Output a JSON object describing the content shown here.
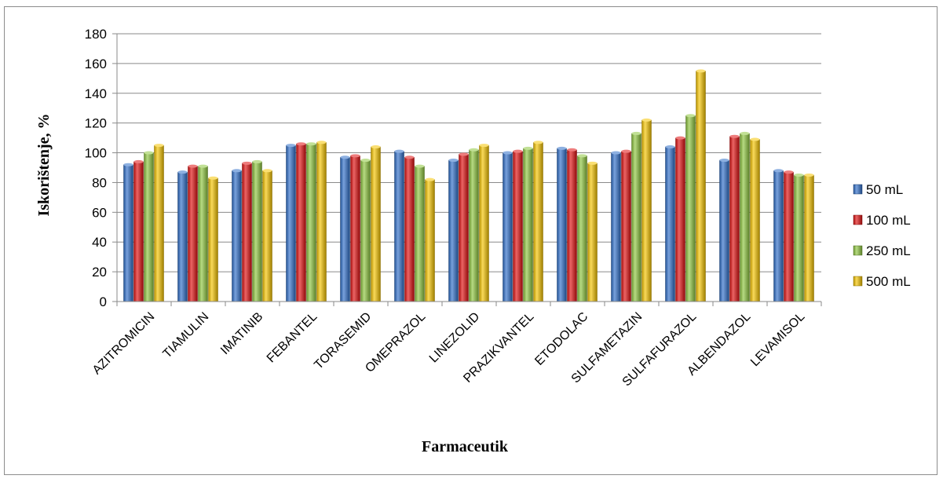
{
  "chart_data": {
    "type": "bar",
    "title": "",
    "xlabel": "Farmaceutik",
    "ylabel": "Iskorištenje, %",
    "ylim": [
      0,
      180
    ],
    "yticks": [
      0,
      20,
      40,
      60,
      80,
      100,
      120,
      140,
      160,
      180
    ],
    "grid": true,
    "legend_position": "right",
    "categories": [
      "AZITROMICIN",
      "TIAMULIN",
      "IMATINIB",
      "FEBANTEL",
      "TORASEMID",
      "OMEPRAZOL",
      "LINEZOLID",
      "PRAZIKVANTEL",
      "ETODOLAC",
      "SULFAMETAZIN",
      "SULFAFURAZOL",
      "ALBENDAZOL",
      "LEVAMISOL"
    ],
    "series": [
      {
        "name": "50 mL",
        "color": "#2f6fc9",
        "values": [
          92,
          87,
          88,
          105,
          97,
          101,
          95,
          100,
          103,
          100,
          104,
          95,
          88
        ]
      },
      {
        "name": "100 mL",
        "color": "#e01010",
        "values": [
          94,
          91,
          93,
          106,
          98,
          97,
          99,
          101,
          102,
          101,
          110,
          111,
          87
        ]
      },
      {
        "name": "250 mL",
        "color": "#8ec63f",
        "values": [
          100,
          91,
          94,
          106,
          95,
          91,
          102,
          103,
          98,
          113,
          125,
          113,
          85
        ]
      },
      {
        "name": "500 mL",
        "color": "#f5c400",
        "values": [
          105,
          83,
          88,
          107,
          104,
          82,
          105,
          107,
          93,
          122,
          155,
          109,
          85
        ]
      }
    ]
  }
}
